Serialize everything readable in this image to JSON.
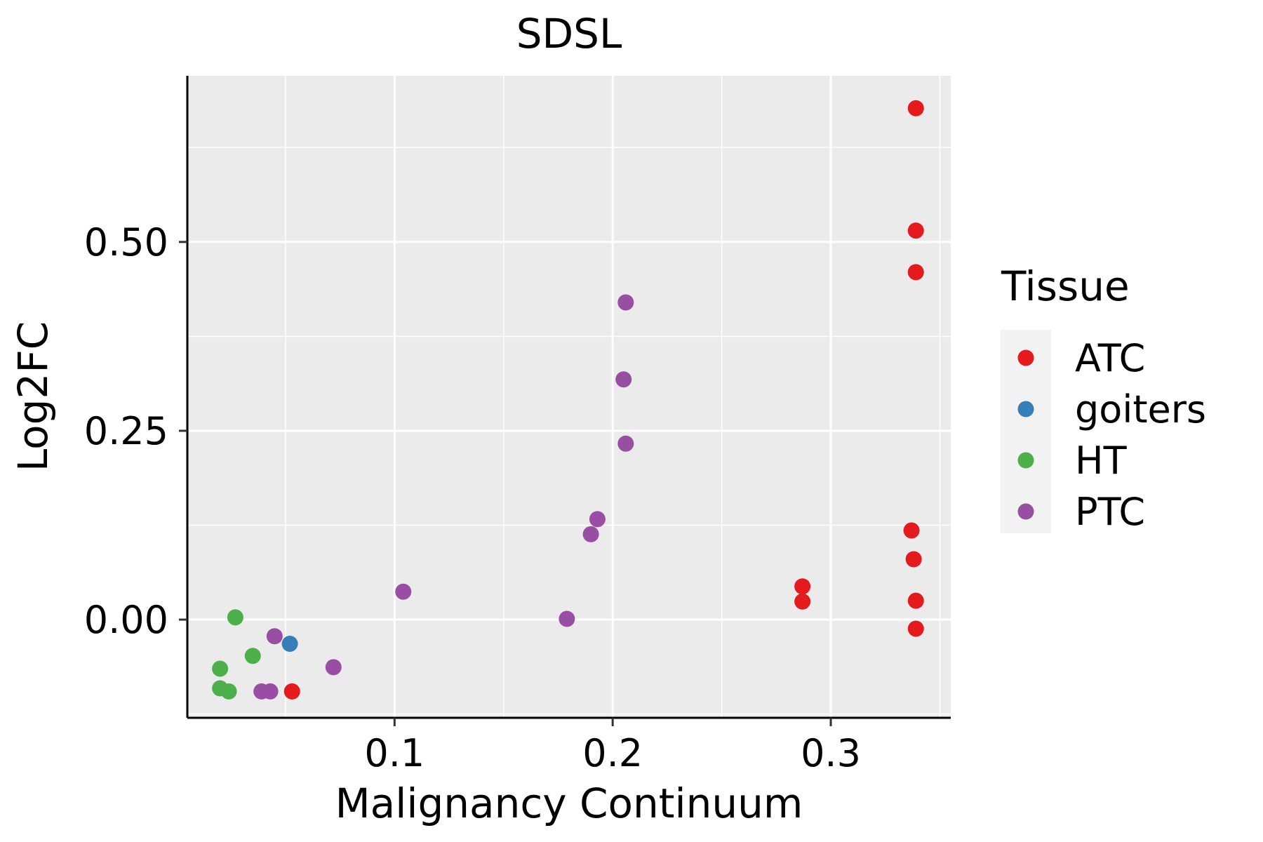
{
  "chart_data": {
    "type": "scatter",
    "title": "SDSL",
    "xlabel": "Malignancy Continuum",
    "ylabel": "Log2FC",
    "xlim": [
      0.005,
      0.355
    ],
    "ylim": [
      -0.13,
      0.72
    ],
    "xticks": [
      {
        "value": 0.1,
        "label": "0.1"
      },
      {
        "value": 0.2,
        "label": "0.2"
      },
      {
        "value": 0.3,
        "label": "0.3"
      }
    ],
    "yticks": [
      {
        "value": 0.0,
        "label": "0.00"
      },
      {
        "value": 0.25,
        "label": "0.25"
      },
      {
        "value": 0.5,
        "label": "0.50"
      }
    ],
    "x_minor": [
      0.05,
      0.15,
      0.25,
      0.35
    ],
    "y_minor": [
      -0.125,
      0.125,
      0.375,
      0.625
    ],
    "grid": true,
    "legend": {
      "title": "Tissue",
      "placement": "right",
      "entries": [
        {
          "name": "ATC",
          "color": "#E41A1C"
        },
        {
          "name": "goiters",
          "color": "#377EB8"
        },
        {
          "name": "HT",
          "color": "#4DAF4A"
        },
        {
          "name": "PTC",
          "color": "#984EA3"
        }
      ]
    },
    "series": [
      {
        "name": "ATC",
        "color": "#E41A1C",
        "points": [
          {
            "x": 0.339,
            "y": 0.677
          },
          {
            "x": 0.339,
            "y": 0.515
          },
          {
            "x": 0.339,
            "y": 0.46
          },
          {
            "x": 0.337,
            "y": 0.118
          },
          {
            "x": 0.338,
            "y": 0.08
          },
          {
            "x": 0.339,
            "y": 0.025
          },
          {
            "x": 0.339,
            "y": -0.012
          },
          {
            "x": 0.287,
            "y": 0.044
          },
          {
            "x": 0.287,
            "y": 0.024
          },
          {
            "x": 0.053,
            "y": -0.095
          }
        ]
      },
      {
        "name": "goiters",
        "color": "#377EB8",
        "points": [
          {
            "x": 0.052,
            "y": -0.032
          }
        ]
      },
      {
        "name": "HT",
        "color": "#4DAF4A",
        "points": [
          {
            "x": 0.027,
            "y": 0.003
          },
          {
            "x": 0.035,
            "y": -0.048
          },
          {
            "x": 0.02,
            "y": -0.065
          },
          {
            "x": 0.02,
            "y": -0.091
          },
          {
            "x": 0.024,
            "y": -0.095
          }
        ]
      },
      {
        "name": "PTC",
        "color": "#984EA3",
        "points": [
          {
            "x": 0.206,
            "y": 0.42
          },
          {
            "x": 0.205,
            "y": 0.318
          },
          {
            "x": 0.206,
            "y": 0.233
          },
          {
            "x": 0.193,
            "y": 0.133
          },
          {
            "x": 0.19,
            "y": 0.113
          },
          {
            "x": 0.104,
            "y": 0.037
          },
          {
            "x": 0.179,
            "y": 0.001
          },
          {
            "x": 0.045,
            "y": -0.022
          },
          {
            "x": 0.072,
            "y": -0.063
          },
          {
            "x": 0.039,
            "y": -0.095
          },
          {
            "x": 0.043,
            "y": -0.095
          }
        ]
      }
    ]
  }
}
